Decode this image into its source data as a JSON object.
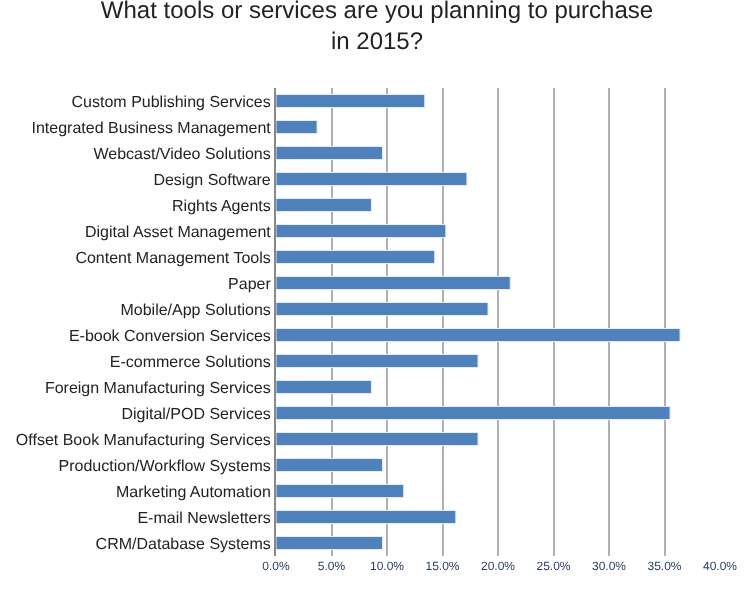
{
  "chart_data": {
    "type": "bar",
    "orientation": "horizontal",
    "title": "What tools or services are you planning to purchase in 2015?",
    "categories": [
      "Custom Publishing Services",
      "Integrated Business Management",
      "Webcast/Video Solutions",
      "Design Software",
      "Rights Agents",
      "Digital Asset Management",
      "Content Management Tools",
      "Paper",
      "Mobile/App Solutions",
      "E-book Conversion Services",
      "E-commerce Solutions",
      "Foreign Manufacturing Services",
      "Digital/POD Services",
      "Offset Book Manufacturing Services",
      "Production/Workflow Systems",
      "Marketing Automation",
      "E-mail Newsletters",
      "CRM/Database Systems"
    ],
    "values": [
      13.4,
      3.7,
      9.6,
      17.2,
      8.6,
      15.3,
      14.3,
      21.1,
      19.1,
      36.4,
      18.2,
      8.6,
      35.5,
      18.2,
      9.6,
      11.5,
      16.2,
      9.6
    ],
    "color": "#4f81bd",
    "xlim": [
      0,
      40
    ],
    "xticks": [
      {
        "value": 0,
        "label": "0.0%"
      },
      {
        "value": 5,
        "label": "5.0%"
      },
      {
        "value": 10,
        "label": "10.0%"
      },
      {
        "value": 15,
        "label": "15.0%"
      },
      {
        "value": 20,
        "label": "20.0%"
      },
      {
        "value": 25,
        "label": "25.0%"
      },
      {
        "value": 30,
        "label": "30.0%"
      },
      {
        "value": 35,
        "label": "35.0%"
      },
      {
        "value": 40,
        "label": "40.0%"
      }
    ],
    "grid": "x",
    "legend": false
  }
}
